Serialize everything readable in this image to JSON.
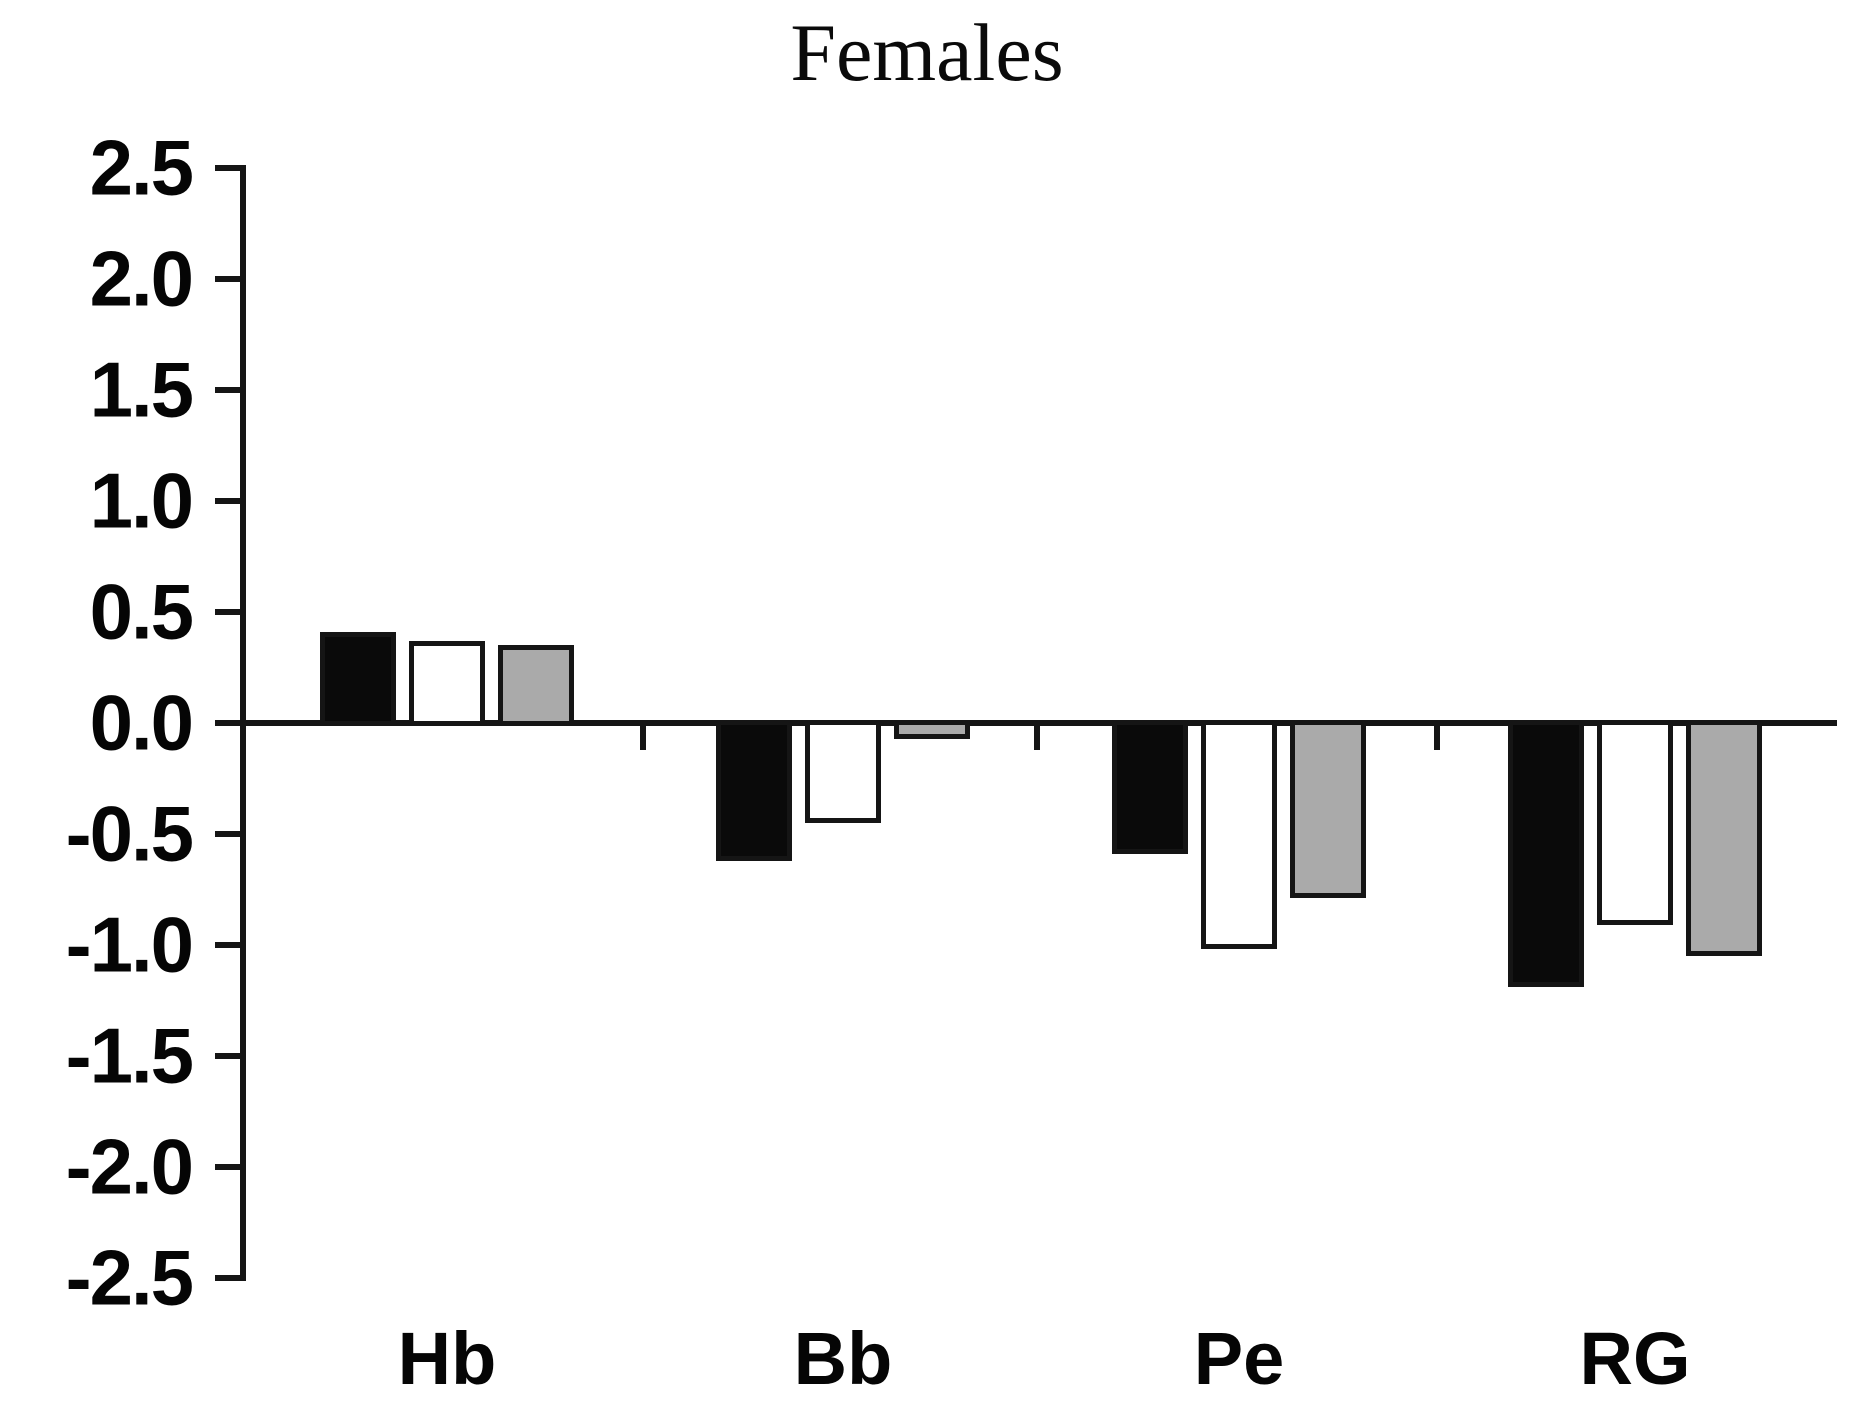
{
  "title": "Females",
  "chart_data": {
    "type": "bar",
    "title": "Females",
    "categories": [
      "Hb",
      "Bb",
      "Pe",
      "RG"
    ],
    "series": [
      {
        "name": "black",
        "color": "#0a0a0a",
        "values": [
          0.41,
          -0.62,
          -0.59,
          -1.19
        ]
      },
      {
        "name": "white",
        "color": "#ffffff",
        "values": [
          0.37,
          -0.45,
          -1.02,
          -0.91
        ]
      },
      {
        "name": "gray",
        "color": "#aaaaaa",
        "values": [
          0.35,
          -0.07,
          -0.79,
          -1.05
        ]
      }
    ],
    "xlabel": "",
    "ylabel": "",
    "ylim": [
      -2.5,
      2.5
    ],
    "ytick_step": 0.5,
    "ytick_labels": [
      "2.5",
      "2.0",
      "1.5",
      "1.0",
      "0.5",
      "0.0",
      "-0.5",
      "-1.0",
      "-1.5",
      "-2.0",
      "-2.5"
    ],
    "grid": false,
    "legend": false,
    "axis_color": "#151515",
    "bar_outline_color": "#151515"
  }
}
